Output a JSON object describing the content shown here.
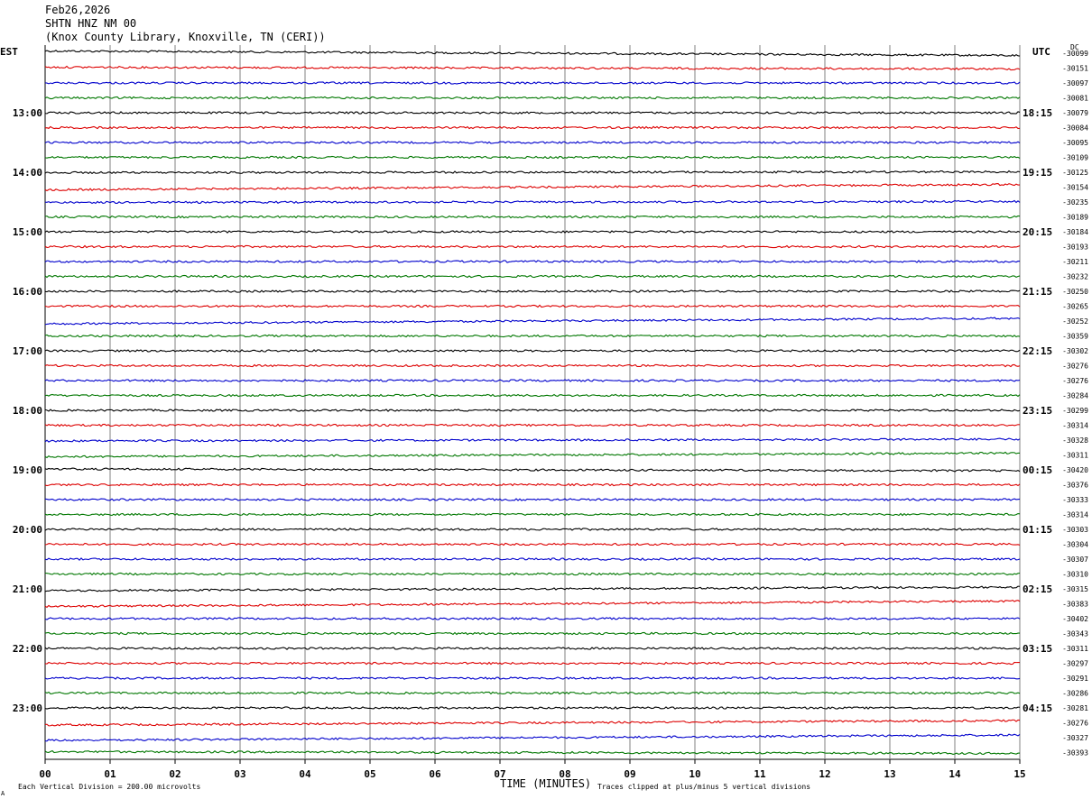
{
  "header": {
    "date": "Feb26,2026",
    "station": "SHTN HNZ NM 00",
    "location": "(Knox County Library, Knoxville, TN (CERI))"
  },
  "axes": {
    "left_tz": "EST",
    "right_tz": "UTC",
    "right_column_unit": "DC"
  },
  "footer": {
    "vertical_division": "Each Vertical Division =  200.00 microvolts",
    "xlabel": "TIME (MINUTES)",
    "clip_note": "Traces clipped at plus/minus 5 vertical divisions",
    "corner_mark": "A"
  },
  "colors": {
    "trace_cycle": [
      "#000000",
      "#dd0000",
      "#0000cc",
      "#007700"
    ],
    "grid": "#808080"
  },
  "chart_data": {
    "type": "line",
    "x_ticks": [
      "00",
      "01",
      "02",
      "03",
      "04",
      "05",
      "06",
      "07",
      "08",
      "09",
      "10",
      "11",
      "12",
      "13",
      "14",
      "15"
    ],
    "xlim": [
      0,
      15
    ],
    "rows_per_hour": 4,
    "hour_labels_left": [
      "13:00",
      "14:00",
      "15:00",
      "16:00",
      "17:00",
      "18:00",
      "19:00",
      "20:00",
      "21:00",
      "22:00",
      "23:00"
    ],
    "hour_labels_right": [
      "18:15",
      "19:15",
      "20:15",
      "21:15",
      "22:15",
      "23:15",
      "00:15",
      "01:15",
      "02:15",
      "03:15",
      "04:15"
    ],
    "dc_offsets": [
      "-30099",
      "-30151",
      "-30097",
      "-30081",
      "-30079",
      "-30084",
      "-30095",
      "-30109",
      "-30125",
      "-30154",
      "-30235",
      "-30189",
      "-30184",
      "-30193",
      "-30211",
      "-30232",
      "-30250",
      "-30265",
      "-30252",
      "-30359",
      "-30302",
      "-30276",
      "-30276",
      "-30284",
      "-30299",
      "-30314",
      "-30328",
      "-30311",
      "-30420",
      "-30376",
      "-30333",
      "-30314",
      "-30303",
      "-30304",
      "-30307",
      "-30310",
      "-30315",
      "-30383",
      "-30402",
      "-30343",
      "-30311",
      "-30297",
      "-30291",
      "-30286",
      "-30281",
      "-30276",
      "-30327",
      "-30393"
    ],
    "trace_drift": [
      -5,
      -2,
      0,
      0,
      0,
      0,
      0,
      0,
      1,
      6,
      1,
      0,
      0,
      0,
      0,
      0,
      0,
      0,
      6,
      0,
      0,
      0,
      0,
      0,
      0,
      0,
      2,
      4,
      -2,
      0,
      0,
      0,
      0,
      0,
      0,
      0,
      4,
      6,
      0,
      0,
      0,
      0,
      0,
      0,
      0,
      5,
      6,
      -2
    ]
  }
}
